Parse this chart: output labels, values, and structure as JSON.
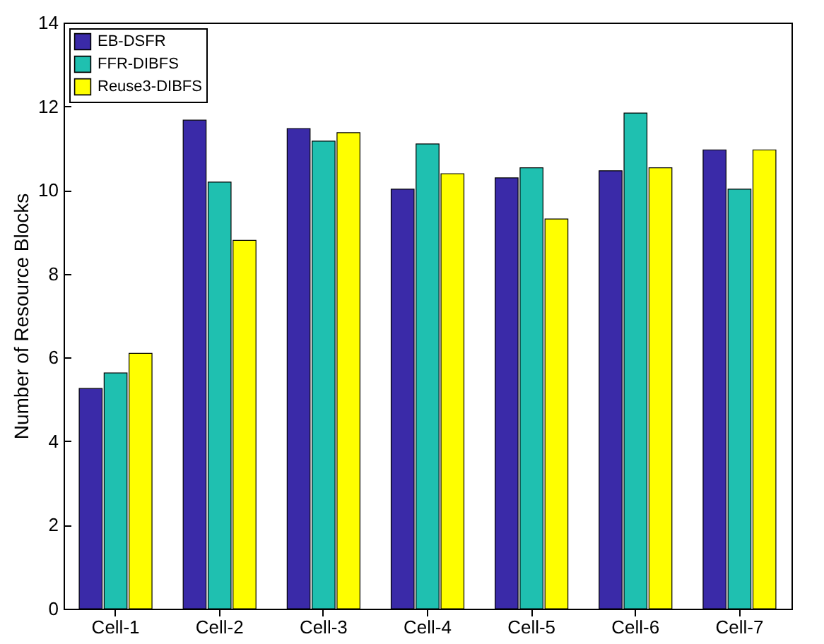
{
  "chart_data": {
    "type": "bar",
    "ylabel": "Number of Resource Blocks",
    "categories": [
      "Cell-1",
      "Cell-2",
      "Cell-3",
      "Cell-4",
      "Cell-5",
      "Cell-6",
      "Cell-7"
    ],
    "series": [
      {
        "name": "EB-DSFR",
        "color": "#3a2aa8",
        "values": [
          5.26,
          11.67,
          11.47,
          10.02,
          10.29,
          10.46,
          10.96
        ]
      },
      {
        "name": "FFR-DIBFS",
        "color": "#1fc0b0",
        "values": [
          5.63,
          10.19,
          11.17,
          11.1,
          10.53,
          11.84,
          10.02
        ]
      },
      {
        "name": "Reuse3-DIBFS",
        "color": "#ffff00",
        "values": [
          6.1,
          8.8,
          11.37,
          10.39,
          9.31,
          10.53,
          10.96
        ]
      }
    ],
    "ylim": [
      0,
      14
    ],
    "yticks": [
      0,
      2,
      4,
      6,
      8,
      10,
      12,
      14
    ],
    "grid": false,
    "legend": "top left"
  }
}
